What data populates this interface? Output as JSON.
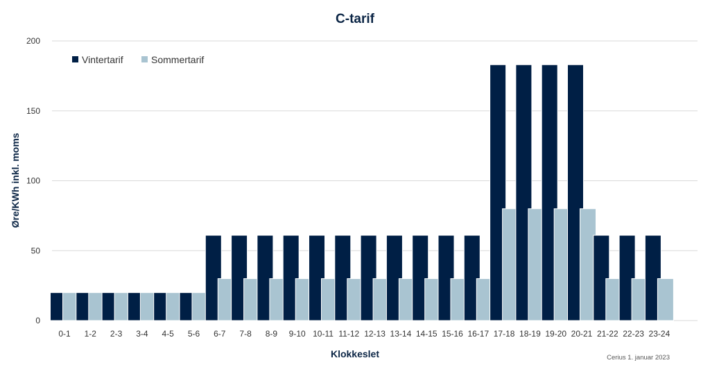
{
  "chart_data": {
    "type": "bar",
    "title": "C-tarif",
    "xlabel": "Klokkeslet",
    "ylabel": "Øre/KWh inkl. moms",
    "ylim": [
      0,
      200
    ],
    "yticks": [
      0,
      50,
      100,
      150,
      200
    ],
    "grid": true,
    "legend_position": "top-left",
    "categories": [
      "0-1",
      "1-2",
      "2-3",
      "3-4",
      "4-5",
      "5-6",
      "6-7",
      "7-8",
      "8-9",
      "9-10",
      "10-11",
      "11-12",
      "12-13",
      "13-14",
      "14-15",
      "15-16",
      "16-17",
      "17-18",
      "18-19",
      "19-20",
      "20-21",
      "21-22",
      "22-23",
      "23-24"
    ],
    "series": [
      {
        "name": "Vintertarif",
        "color": "#001f45",
        "values": [
          20,
          20,
          20,
          20,
          20,
          20,
          61,
          61,
          61,
          61,
          61,
          61,
          61,
          61,
          61,
          61,
          61,
          183,
          183,
          183,
          183,
          61,
          61,
          61
        ]
      },
      {
        "name": "Sommertarif",
        "color": "#a9c4d1",
        "values": [
          20,
          20,
          20,
          20,
          20,
          20,
          30,
          30,
          30,
          30,
          30,
          30,
          30,
          30,
          30,
          30,
          30,
          80,
          80,
          80,
          80,
          30,
          30,
          30
        ]
      }
    ],
    "source_note": "Cerius 1. januar 2023"
  }
}
